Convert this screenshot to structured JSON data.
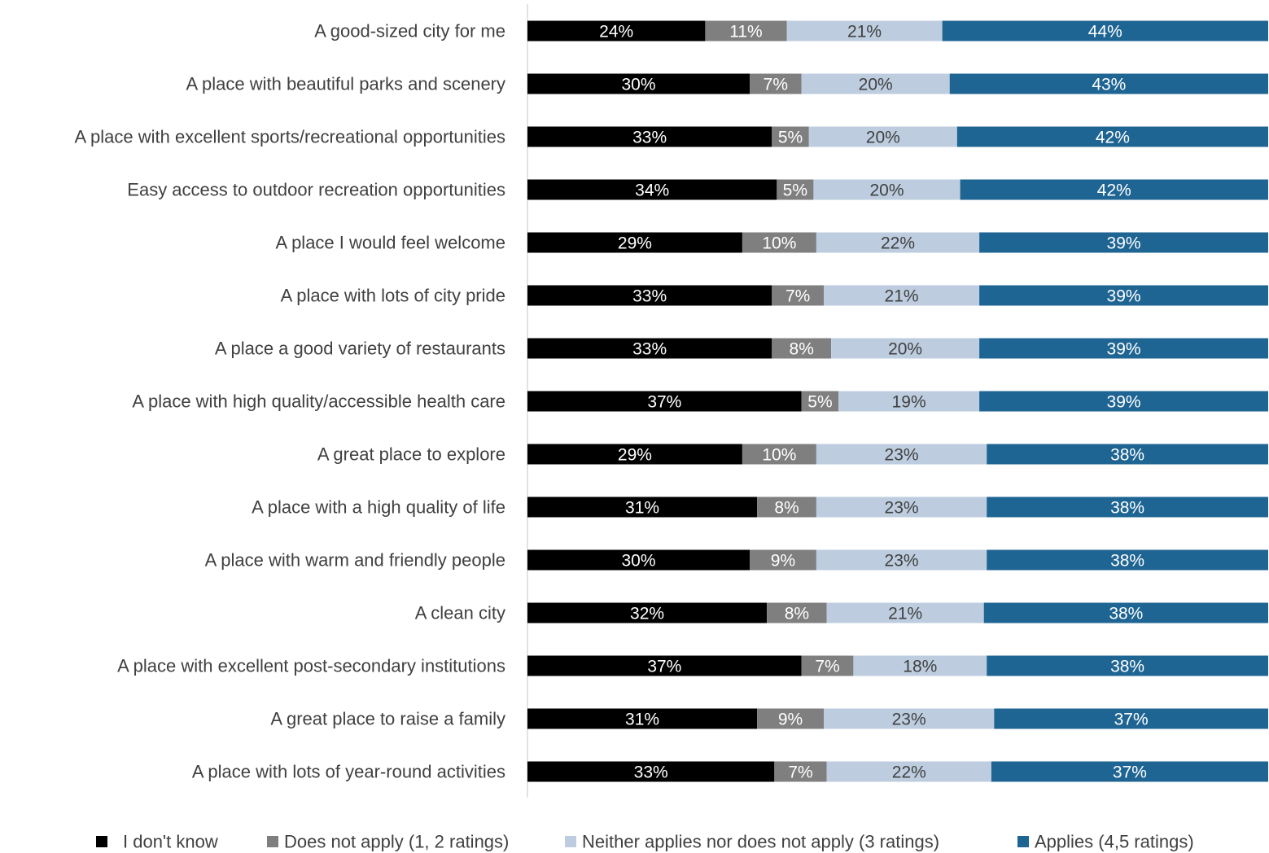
{
  "chart_data": {
    "type": "bar",
    "orientation": "horizontal",
    "stacked": "percent",
    "title": "",
    "xlabel": "",
    "ylabel": "",
    "xlim": [
      0,
      100
    ],
    "grid": false,
    "legend": "bottom",
    "categories": [
      "A good-sized city for me",
      "A place with beautiful parks and scenery",
      "A place with excellent sports/recreational opportunities",
      "Easy access to outdoor recreation opportunities",
      "A place I would feel welcome",
      "A place with lots of city pride",
      "A place a good variety of restaurants",
      "A place with high quality/accessible health care",
      "A great place to explore",
      "A place with a high quality of life",
      "A place with warm and friendly people",
      "A clean city",
      "A place with excellent post-secondary institutions",
      "A great place to raise a family",
      "A place with lots of year-round activities"
    ],
    "series": [
      {
        "name": "I don't know",
        "color": "#000000",
        "label_color": "#ffffff",
        "values": [
          24,
          30,
          33,
          34,
          29,
          33,
          33,
          37,
          29,
          31,
          30,
          32,
          37,
          31,
          33
        ]
      },
      {
        "name": "Does not apply (1, 2 ratings)",
        "color": "#7f7f7f",
        "label_color": "#ffffff",
        "values": [
          11,
          7,
          5,
          5,
          10,
          7,
          8,
          5,
          10,
          8,
          9,
          8,
          7,
          9,
          7
        ]
      },
      {
        "name": "Neither applies nor does not apply (3 ratings)",
        "color": "#bdcddf",
        "label_color": "#404040",
        "values": [
          21,
          20,
          20,
          20,
          22,
          21,
          20,
          19,
          23,
          23,
          23,
          21,
          18,
          23,
          22
        ]
      },
      {
        "name": "Applies (4,5 ratings)",
        "color": "#1f6593",
        "label_color": "#ffffff",
        "values": [
          44,
          43,
          42,
          42,
          39,
          39,
          39,
          39,
          38,
          38,
          38,
          38,
          38,
          37,
          37
        ]
      }
    ],
    "value_suffix": "%"
  }
}
